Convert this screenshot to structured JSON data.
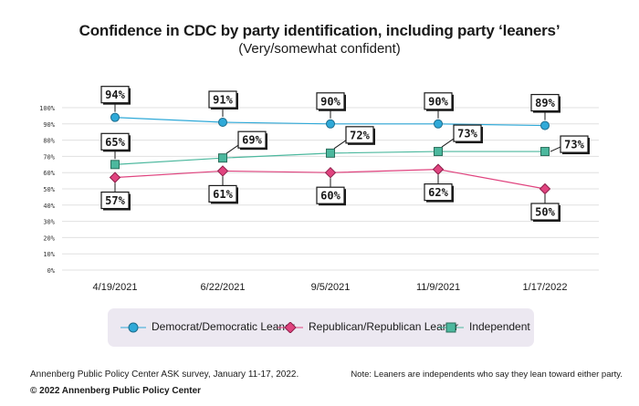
{
  "header": {
    "title": "Confidence in CDC by party identification, including party ‘leaners’",
    "subtitle": "(Very/somewhat confident)"
  },
  "colors": {
    "democrat": "#2fa9d8",
    "republican": "#e0447f",
    "independent": "#4cb89e",
    "grid": "#e0e0e0",
    "legend_bg": "#ece8f1"
  },
  "chart_data": {
    "type": "line",
    "x": [
      "4/19/2021",
      "6/22/2021",
      "9/5/2021",
      "11/9/2021",
      "1/17/2022"
    ],
    "ylim": [
      0,
      100
    ],
    "yticks": [
      "0%",
      "10%",
      "20%",
      "30%",
      "40%",
      "50%",
      "60%",
      "70%",
      "80%",
      "90%",
      "100%"
    ],
    "grid": true,
    "legend_position": "bottom",
    "series": [
      {
        "key": "democrat",
        "name": "Democrat/Democratic Leaner",
        "marker": "circle",
        "values": [
          94,
          91,
          90,
          90,
          89
        ],
        "labels": [
          "94%",
          "91%",
          "90%",
          "90%",
          "89%"
        ],
        "label_position": [
          "above",
          "above",
          "above",
          "above",
          "above"
        ]
      },
      {
        "key": "republican",
        "name": "Republican/Republican Leaner",
        "marker": "diamond",
        "values": [
          57,
          61,
          60,
          62,
          50
        ],
        "labels": [
          "57%",
          "61%",
          "60%",
          "62%",
          "50%"
        ],
        "label_position": [
          "below",
          "below",
          "below",
          "below",
          "below"
        ]
      },
      {
        "key": "independent",
        "name": "Independent",
        "marker": "square",
        "values": [
          65,
          69,
          72,
          73,
          73
        ],
        "labels": [
          "65%",
          "69%",
          "72%",
          "73%",
          "73%"
        ],
        "label_position": [
          "above",
          "above-right",
          "above-right",
          "above-right",
          "right"
        ]
      }
    ]
  },
  "footer": {
    "source": "Annenberg Public Policy Center ASK survey, January 11-17, 2022.",
    "note": "Note: Leaners are independents who say they lean toward either party.",
    "copyright": "© 2022 Annenberg Public Policy Center"
  }
}
